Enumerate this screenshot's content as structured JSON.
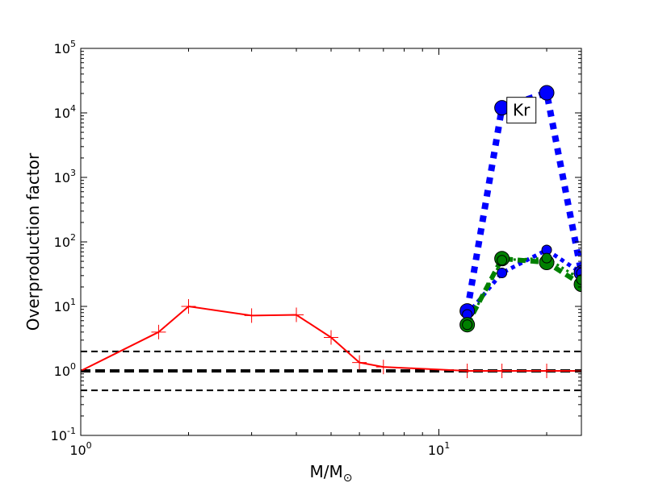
{
  "chart_data": {
    "type": "line",
    "xlabel_main": "M/M",
    "xlabel_sub": "⊙",
    "ylabel": "Overproduction factor",
    "x_scale": "log",
    "y_scale": "log",
    "xlim": [
      1,
      25
    ],
    "ylim": [
      0.1,
      100000
    ],
    "x_ticks": [
      {
        "value": 1,
        "base": "10",
        "exp": "0"
      },
      {
        "value": 10,
        "base": "10",
        "exp": "1"
      }
    ],
    "y_ticks": [
      {
        "value": 0.1,
        "base": "10",
        "exp": "-1"
      },
      {
        "value": 1,
        "base": "10",
        "exp": "0"
      },
      {
        "value": 10,
        "base": "10",
        "exp": "1"
      },
      {
        "value": 100,
        "base": "10",
        "exp": "2"
      },
      {
        "value": 1000,
        "base": "10",
        "exp": "3"
      },
      {
        "value": 10000,
        "base": "10",
        "exp": "4"
      },
      {
        "value": 100000,
        "base": "10",
        "exp": "5"
      }
    ],
    "annotation": {
      "text": "Kr",
      "x": 17,
      "y": 11000
    },
    "reference_lines": [
      {
        "y": 2.0,
        "style": "dashed",
        "width": 2,
        "color": "#000000"
      },
      {
        "y": 1.0,
        "style": "dashed",
        "width": 4,
        "color": "#000000"
      },
      {
        "y": 0.5,
        "style": "dashed",
        "width": 2,
        "color": "#000000"
      }
    ],
    "series": [
      {
        "kind": "solid-line-plus",
        "color": "#ff0000",
        "x": [
          1.0,
          1.65,
          2.0,
          3.0,
          4.0,
          5.0,
          6.0,
          7.0,
          12.0,
          15.0,
          20.0,
          25.0
        ],
        "y": [
          1.0,
          4.0,
          10.0,
          7.2,
          7.4,
          3.3,
          1.35,
          1.15,
          1.0,
          1.0,
          1.0,
          1.0
        ],
        "marker_at": [
          1.65,
          2.0,
          3.0,
          4.0,
          5.0,
          6.0,
          7.0,
          12.0,
          15.0,
          20.0
        ]
      },
      {
        "kind": "dotted-thick",
        "color": "#0000ff",
        "x": [
          12,
          15,
          20,
          25
        ],
        "y": [
          8.5,
          12000,
          20500,
          33
        ],
        "marker_size": "large"
      },
      {
        "kind": "dotted-medium",
        "color": "#0000ff",
        "x": [
          12,
          15,
          20,
          25
        ],
        "y": [
          7.5,
          33,
          75,
          33
        ],
        "marker_size": "small"
      },
      {
        "kind": "dashed-thick",
        "color": "#008000",
        "x": [
          12,
          15,
          20,
          25
        ],
        "y": [
          5.2,
          55,
          48,
          22
        ],
        "marker_size": "large"
      },
      {
        "kind": "dotted-thin",
        "color": "#008000",
        "x": [
          12,
          15,
          20,
          25
        ],
        "y": [
          5.2,
          52,
          56,
          26
        ],
        "marker_size": "small"
      }
    ]
  }
}
